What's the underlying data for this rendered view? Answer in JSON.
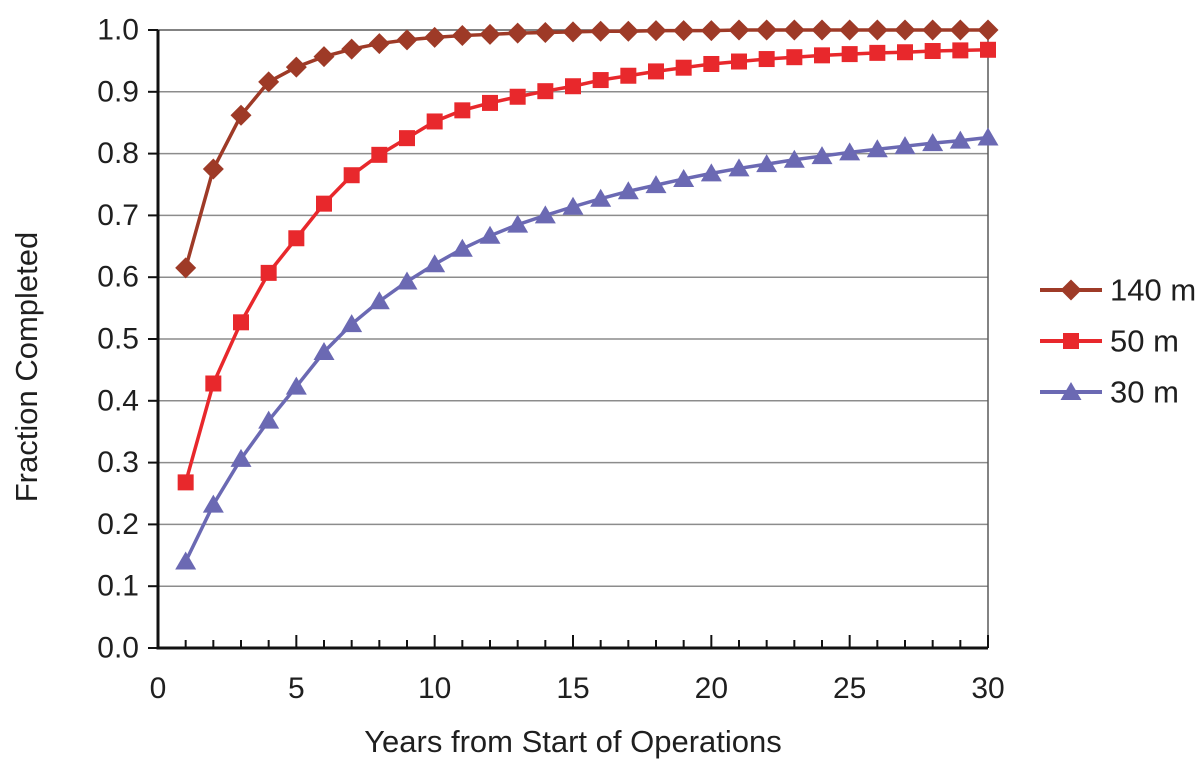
{
  "chart_data": {
    "type": "line",
    "title": "",
    "xlabel": "Years from Start of Operations",
    "ylabel": "Fraction Completed",
    "xlim": [
      0,
      30
    ],
    "ylim": [
      0.0,
      1.0
    ],
    "grid": "horizontal",
    "legend_position": "right",
    "xticks": [
      0,
      5,
      10,
      15,
      20,
      25,
      30
    ],
    "xtick_labels": [
      "0",
      "5",
      "10",
      "15",
      "20",
      "25",
      "30"
    ],
    "yticks": [
      0.0,
      0.1,
      0.2,
      0.3,
      0.4,
      0.5,
      0.6,
      0.7,
      0.8,
      0.9,
      1.0
    ],
    "ytick_labels": [
      "0.0",
      "0.1",
      "0.2",
      "0.3",
      "0.4",
      "0.5",
      "0.6",
      "0.7",
      "0.8",
      "0.9",
      "1.0"
    ],
    "x": [
      1,
      2,
      3,
      4,
      5,
      6,
      7,
      8,
      9,
      10,
      11,
      12,
      13,
      14,
      15,
      16,
      17,
      18,
      19,
      20,
      21,
      22,
      23,
      24,
      25,
      26,
      27,
      28,
      29,
      30
    ],
    "series": [
      {
        "name": "140 m",
        "marker": "diamond",
        "color": "#9E3A27",
        "values": [
          0.615,
          0.775,
          0.862,
          0.916,
          0.94,
          0.957,
          0.969,
          0.978,
          0.984,
          0.988,
          0.991,
          0.993,
          0.995,
          0.996,
          0.997,
          0.998,
          0.998,
          0.999,
          0.999,
          0.999,
          1.0,
          1.0,
          1.0,
          1.0,
          1.0,
          1.0,
          1.0,
          1.0,
          1.0,
          1.0
        ]
      },
      {
        "name": "50 m",
        "marker": "square",
        "color": "#E8282C",
        "values": [
          0.268,
          0.428,
          0.527,
          0.607,
          0.663,
          0.719,
          0.765,
          0.798,
          0.825,
          0.852,
          0.87,
          0.882,
          0.892,
          0.901,
          0.909,
          0.919,
          0.926,
          0.933,
          0.939,
          0.945,
          0.949,
          0.953,
          0.956,
          0.959,
          0.961,
          0.963,
          0.964,
          0.966,
          0.967,
          0.968
        ]
      },
      {
        "name": "30 m",
        "marker": "triangle",
        "color": "#6B69B3",
        "values": [
          0.14,
          0.232,
          0.306,
          0.368,
          0.423,
          0.479,
          0.524,
          0.561,
          0.593,
          0.621,
          0.646,
          0.667,
          0.685,
          0.7,
          0.714,
          0.727,
          0.739,
          0.749,
          0.759,
          0.768,
          0.776,
          0.783,
          0.79,
          0.796,
          0.802,
          0.807,
          0.812,
          0.817,
          0.821,
          0.826
        ]
      }
    ],
    "colors": {
      "grid": "#8C8C8C",
      "axis": "#111111",
      "text": "#1f1f1f",
      "background": "#ffffff"
    }
  }
}
